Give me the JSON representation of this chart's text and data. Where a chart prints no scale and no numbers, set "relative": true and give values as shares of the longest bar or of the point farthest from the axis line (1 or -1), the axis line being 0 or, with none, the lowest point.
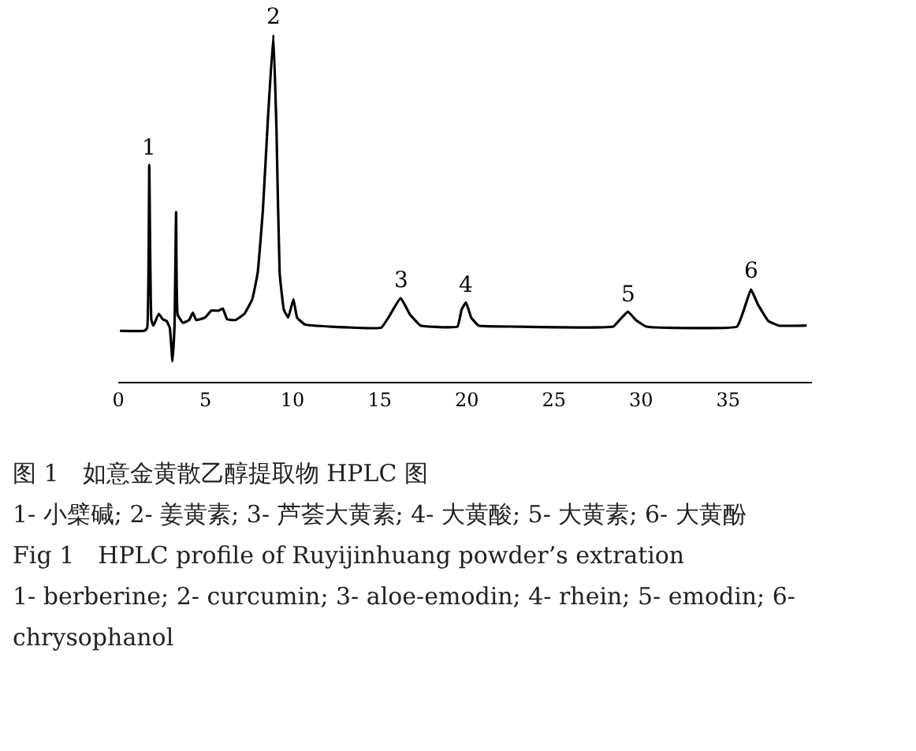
{
  "chart_data": {
    "type": "line",
    "relative": true,
    "title": "图 1　如意金黄散乙醇提取物 HPLC 图",
    "x": [
      0.1,
      1.5,
      1.66,
      1.78,
      1.9,
      2.02,
      2.32,
      2.56,
      2.78,
      2.96,
      3.11,
      3.23,
      3.32,
      3.41,
      3.71,
      4.07,
      4.28,
      4.47,
      4.98,
      5.34,
      5.76,
      6.0,
      6.25,
      6.73,
      7.24,
      7.69,
      8.0,
      8.3,
      8.6,
      8.9,
      9.08,
      9.26,
      9.5,
      9.75,
      10.05,
      10.26,
      10.71,
      12.2,
      15.09,
      15.5,
      16.2,
      16.75,
      17.35,
      19.46,
      19.7,
      19.95,
      20.25,
      20.67,
      22.8,
      28.4,
      28.8,
      29.24,
      29.7,
      30.3,
      35.5,
      35.9,
      36.3,
      36.7,
      37.3,
      37.9,
      39.5
    ],
    "series": [
      {
        "color": "#000000",
        "values": [
          0.147,
          0.147,
          0.155,
          0.625,
          0.178,
          0.162,
          0.196,
          0.18,
          0.175,
          0.155,
          0.059,
          0.162,
          0.489,
          0.193,
          0.17,
          0.178,
          0.199,
          0.178,
          0.185,
          0.205,
          0.205,
          0.211,
          0.18,
          0.178,
          0.196,
          0.238,
          0.314,
          0.496,
          0.769,
          1.0,
          0.724,
          0.314,
          0.208,
          0.185,
          0.238,
          0.185,
          0.165,
          0.159,
          0.156,
          0.185,
          0.241,
          0.193,
          0.162,
          0.159,
          0.208,
          0.229,
          0.185,
          0.162,
          0.159,
          0.159,
          0.18,
          0.202,
          0.178,
          0.159,
          0.159,
          0.208,
          0.266,
          0.223,
          0.175,
          0.162,
          0.162
        ]
      }
    ],
    "xlim": [
      0,
      39.8
    ],
    "xticks": [
      0,
      5,
      10,
      15,
      20,
      25,
      30,
      35
    ],
    "grid": false,
    "marker": "none",
    "line_style": "solid",
    "annotations": [
      {
        "text": "1",
        "x": 1.78,
        "y": 0.625
      },
      {
        "text": "2",
        "x": 8.9,
        "y": 1.0
      },
      {
        "text": "3",
        "x": 16.2,
        "y": 0.241
      },
      {
        "text": "4",
        "x": 19.95,
        "y": 0.229
      },
      {
        "text": "5",
        "x": 29.24,
        "y": 0.202
      },
      {
        "text": "6",
        "x": 36.3,
        "y": 0.266
      },
      "1- 小檗碱; 2- 姜黄素; 3- 芦荟大黄素; 4- 大黄酸; 5- 大黄素; 6- 大黄酚",
      "Fig 1　HPLC profile of Ruyijinhuang powder’s extration",
      "1- berberine; 2- curcumin; 3- aloe-emodin; 4- rhein; 5- emodin; 6- chrysophanol"
    ]
  }
}
